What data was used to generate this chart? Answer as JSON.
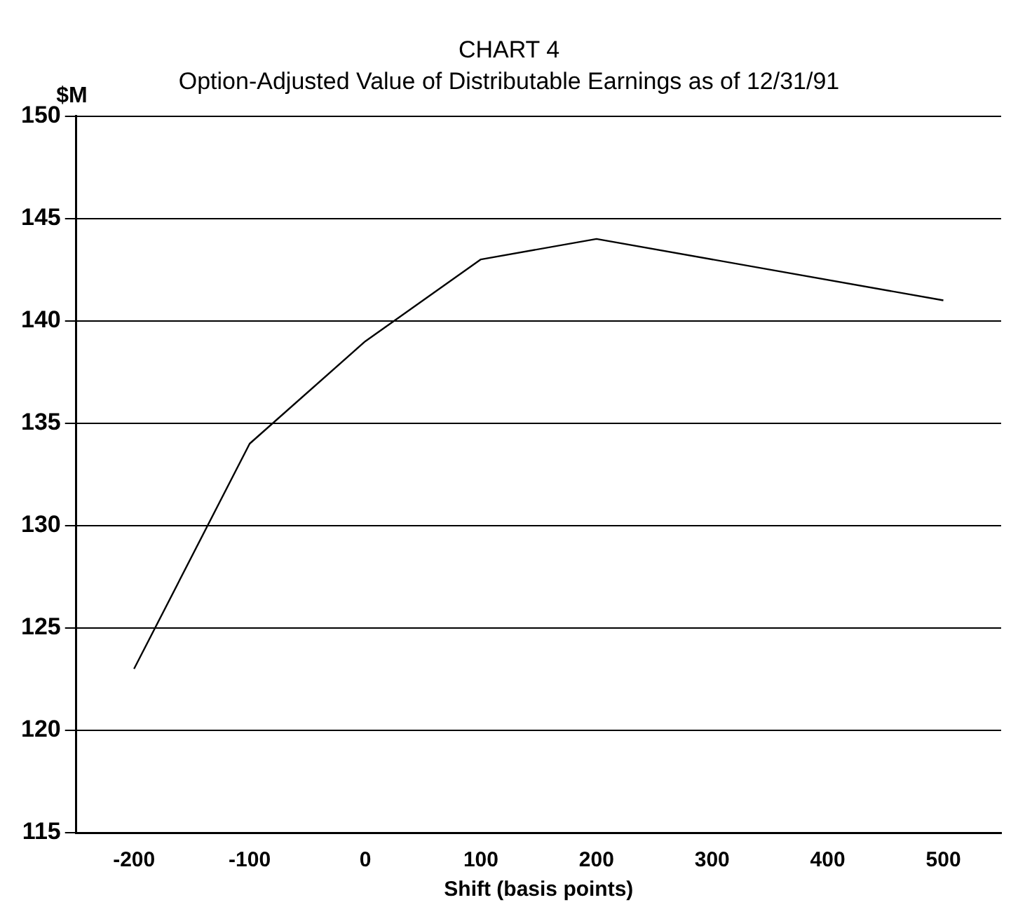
{
  "chart_data": {
    "type": "line",
    "title": "CHART 4",
    "subtitle": "Option-Adjusted Value of Distributable Earnings as of 12/31/91",
    "xlabel": "Shift (basis points)",
    "ylabel": "$M",
    "x": [
      -200,
      -100,
      0,
      100,
      200,
      500
    ],
    "series": [
      {
        "color": "#000000",
        "values": [
          123,
          134,
          139,
          143,
          144,
          141
        ]
      }
    ],
    "xlim": [
      -250,
      550
    ],
    "xticks": [
      -200,
      -100,
      0,
      100,
      200,
      300,
      400,
      500
    ],
    "ylim": [
      115,
      150
    ],
    "yticks": [
      115,
      120,
      125,
      130,
      135,
      140,
      145,
      150
    ],
    "grid": "y",
    "legend": false,
    "marker": "none",
    "line_style": "solid"
  }
}
